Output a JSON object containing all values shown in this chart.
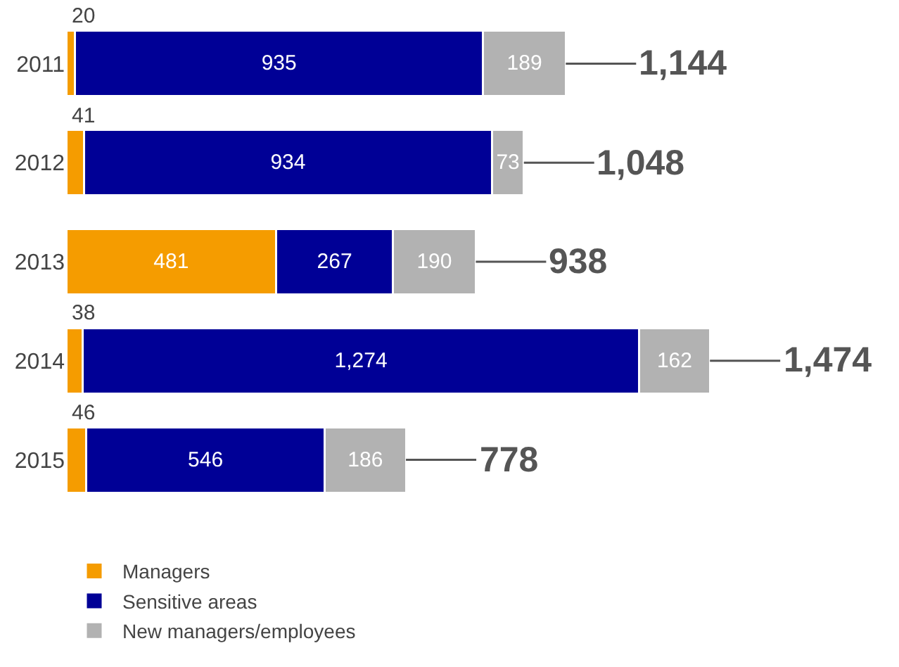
{
  "chart_data": {
    "type": "bar",
    "orientation": "horizontal",
    "stacked": true,
    "legend": "bottom left",
    "categories": [
      "2011",
      "2012",
      "2013",
      "2014",
      "2015"
    ],
    "series": [
      {
        "name": "Managers",
        "color": "#f59c00",
        "values": [
          20,
          41,
          481,
          38,
          46
        ],
        "value_labels": [
          "20",
          "41",
          "481",
          "38",
          "46"
        ]
      },
      {
        "name": "Sensitive areas",
        "color": "#000096",
        "values": [
          935,
          934,
          267,
          1274,
          546
        ],
        "value_labels": [
          "935",
          "934",
          "267",
          "1,274",
          "546"
        ]
      },
      {
        "name": "New managers/employees",
        "color": "#b2b2b2",
        "values": [
          189,
          73,
          190,
          162,
          186
        ],
        "value_labels": [
          "189",
          "73",
          "190",
          "162",
          "186"
        ]
      }
    ],
    "totals": [
      "1,144",
      "1,048",
      "938",
      "1,474",
      "778"
    ]
  }
}
